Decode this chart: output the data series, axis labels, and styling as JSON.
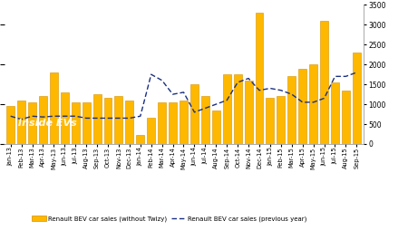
{
  "categories": [
    "Jan-13",
    "Feb-13",
    "Mar-13",
    "Apr-13",
    "May-13",
    "Jun-13",
    "Jul-13",
    "Aug-13",
    "Sep-13",
    "Oct-13",
    "Nov-13",
    "Dec-13",
    "Jan-14",
    "Feb-14",
    "Mar-14",
    "Apr-14",
    "May-14",
    "Jun-14",
    "Jul-14",
    "Aug-14",
    "Sep-14",
    "Oct-14",
    "Nov-14",
    "Dec-14",
    "Jan-15",
    "Feb-15",
    "Mar-15",
    "Apr-15",
    "May-15",
    "Jun-15",
    "Jul-15",
    "Aug-15",
    "Sep-15"
  ],
  "bar_values": [
    950,
    1100,
    1050,
    1200,
    1800,
    1300,
    1050,
    1050,
    1250,
    1150,
    1200,
    1100,
    220,
    650,
    1050,
    1050,
    1100,
    1500,
    1200,
    850,
    1750,
    1750,
    1600,
    3300,
    1150,
    1200,
    1700,
    1900,
    2000,
    3100,
    1550,
    1350,
    2300
  ],
  "line_values": [
    700,
    620,
    700,
    680,
    700,
    700,
    700,
    650,
    650,
    650,
    650,
    650,
    700,
    1750,
    1600,
    1250,
    1300,
    800,
    900,
    1000,
    1100,
    1550,
    1650,
    1350,
    1400,
    1350,
    1250,
    1050,
    1050,
    1150,
    1700,
    1700,
    1800
  ],
  "bar_color": "#FFB800",
  "bar_edge_color": "#D49000",
  "line_color": "#1A2F80",
  "background_color": "#FFFFFF",
  "ylim": [
    0,
    3500
  ],
  "yticks_right": [
    0,
    500,
    1000,
    1500,
    2000,
    2500,
    3000,
    3500
  ],
  "legend_bar_label": "Renault BEV car sales (without Twizy)",
  "legend_line_label": "Renault BEV car sales (previous year)",
  "watermark": "Inside EVs"
}
